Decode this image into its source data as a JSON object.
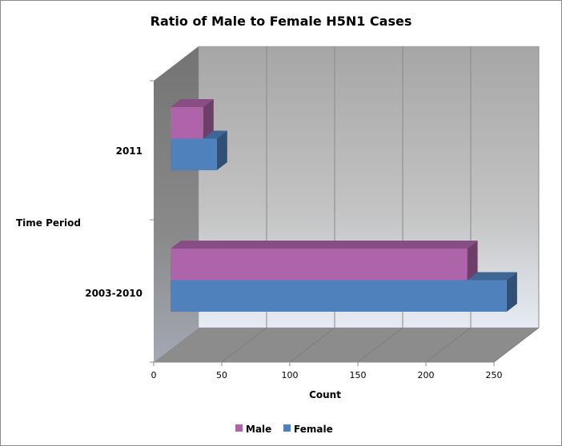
{
  "chart_data": {
    "type": "bar",
    "orientation": "horizontal",
    "style": "3d-clustered",
    "title": "Ratio of Male to Female H5N1 Cases",
    "xlabel": "Count",
    "ylabel": "Time Period",
    "categories": [
      "2003-2010",
      "2011"
    ],
    "series": [
      {
        "name": "Male",
        "values": [
          218,
          24
        ],
        "color": "#ae64a8"
      },
      {
        "name": "Female",
        "values": [
          247,
          34
        ],
        "color": "#4f81bd"
      }
    ],
    "xlim": [
      0,
      250
    ],
    "xticks": [
      "0",
      "50",
      "100",
      "150",
      "200",
      "250"
    ],
    "grid": true,
    "legend_position": "bottom"
  }
}
